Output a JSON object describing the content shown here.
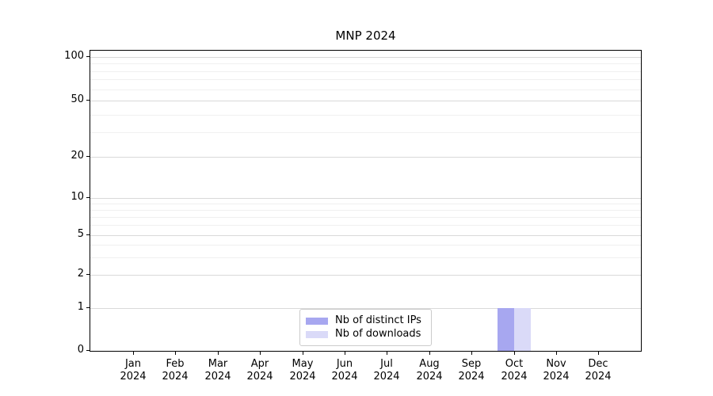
{
  "chart_data": {
    "type": "bar",
    "title": "MNP 2024",
    "categories": [
      "Jan 2024",
      "Feb 2024",
      "Mar 2024",
      "Apr 2024",
      "May 2024",
      "Jun 2024",
      "Jul 2024",
      "Aug 2024",
      "Sep 2024",
      "Oct 2024",
      "Nov 2024",
      "Dec 2024"
    ],
    "series": [
      {
        "name": "Nb of distinct IPs",
        "color": "#a7a7f0",
        "values": [
          0,
          0,
          0,
          0,
          0,
          0,
          0,
          0,
          0,
          1,
          0,
          0
        ]
      },
      {
        "name": "Nb of downloads",
        "color": "#dadaf8",
        "values": [
          0,
          0,
          0,
          0,
          0,
          0,
          0,
          0,
          0,
          1,
          0,
          0
        ]
      }
    ],
    "xlabel": "",
    "ylabel": "",
    "yticks": [
      0,
      1,
      2,
      5,
      10,
      20,
      50,
      100
    ],
    "yscale": "symlog",
    "ylim": [
      0,
      110
    ],
    "grid": "horizontal major and minor gridlines, light gray",
    "legend_position": "lower center inside plot",
    "axis_color": "#000000",
    "major_grid_color": "#d9d9d9",
    "minor_grid_color": "#f0f0f0",
    "background_color": "#ffffff"
  }
}
